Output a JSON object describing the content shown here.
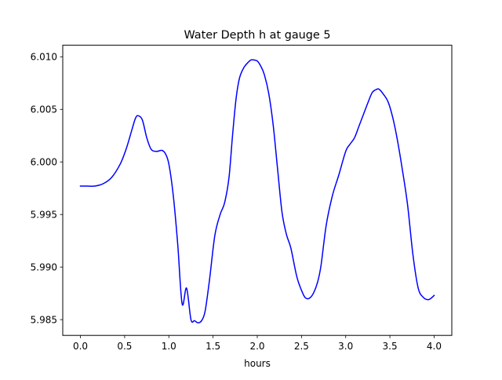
{
  "chart_data": {
    "type": "line",
    "title": "Water Depth h at gauge 5",
    "xlabel": "hours",
    "ylabel": "",
    "xlim": [
      -0.2,
      4.2
    ],
    "ylim": [
      5.9835,
      6.0111
    ],
    "xticks": [
      0.0,
      0.5,
      1.0,
      1.5,
      2.0,
      2.5,
      3.0,
      3.5,
      4.0
    ],
    "xtick_labels": [
      "0.0",
      "0.5",
      "1.0",
      "1.5",
      "2.0",
      "2.5",
      "3.0",
      "3.5",
      "4.0"
    ],
    "yticks": [
      5.985,
      5.99,
      5.995,
      6.0,
      6.005,
      6.01
    ],
    "ytick_labels": [
      "5.985",
      "5.990",
      "5.995",
      "6.000",
      "6.005",
      "6.010"
    ],
    "grid": false,
    "colors": {
      "line": "#0000ff",
      "axes": "#000000",
      "background": "#ffffff"
    },
    "series": [
      {
        "x": [
          0.0,
          0.08,
          0.16,
          0.25,
          0.35,
          0.45,
          0.52,
          0.58,
          0.62,
          0.65,
          0.7,
          0.75,
          0.8,
          0.86,
          0.92,
          0.96,
          1.0,
          1.05,
          1.1,
          1.15,
          1.2,
          1.25,
          1.29,
          1.33,
          1.37,
          1.41,
          1.46,
          1.52,
          1.58,
          1.63,
          1.68,
          1.72,
          1.76,
          1.8,
          1.85,
          1.9,
          1.93,
          1.96,
          2.0,
          2.04,
          2.08,
          2.13,
          2.18,
          2.23,
          2.28,
          2.33,
          2.38,
          2.45,
          2.52,
          2.56,
          2.6,
          2.64,
          2.68,
          2.72,
          2.78,
          2.85,
          2.92,
          3.0,
          3.05,
          3.1,
          3.15,
          3.2,
          3.25,
          3.3,
          3.35,
          3.38,
          3.43,
          3.48,
          3.53,
          3.58,
          3.64,
          3.7,
          3.76,
          3.82,
          3.88,
          3.93,
          3.96,
          4.0
        ],
        "y": [
          5.9977,
          5.9977,
          5.9977,
          5.9979,
          5.9985,
          5.9998,
          6.0013,
          6.003,
          6.0041,
          6.0044,
          6.004,
          6.0023,
          6.0012,
          6.001,
          6.0011,
          6.0008,
          5.9998,
          5.9968,
          5.9922,
          5.9865,
          5.988,
          5.985,
          5.9849,
          5.9847,
          5.9849,
          5.9858,
          5.9888,
          5.993,
          5.995,
          5.9961,
          5.9985,
          6.0025,
          6.006,
          6.008,
          6.009,
          6.0095,
          6.0097,
          6.0097,
          6.0096,
          6.0091,
          6.0083,
          6.0065,
          6.0035,
          5.9993,
          5.9952,
          5.9931,
          5.9918,
          5.989,
          5.9874,
          5.987,
          5.9871,
          5.9876,
          5.9885,
          5.9901,
          5.994,
          5.9968,
          5.9987,
          6.001,
          6.0017,
          6.0023,
          6.0034,
          6.0045,
          6.0056,
          6.0066,
          6.0069,
          6.0069,
          6.0064,
          6.0057,
          6.0043,
          6.0023,
          5.9993,
          5.9959,
          5.9912,
          5.988,
          5.9871,
          5.9869,
          5.987,
          5.9873
        ]
      }
    ]
  }
}
